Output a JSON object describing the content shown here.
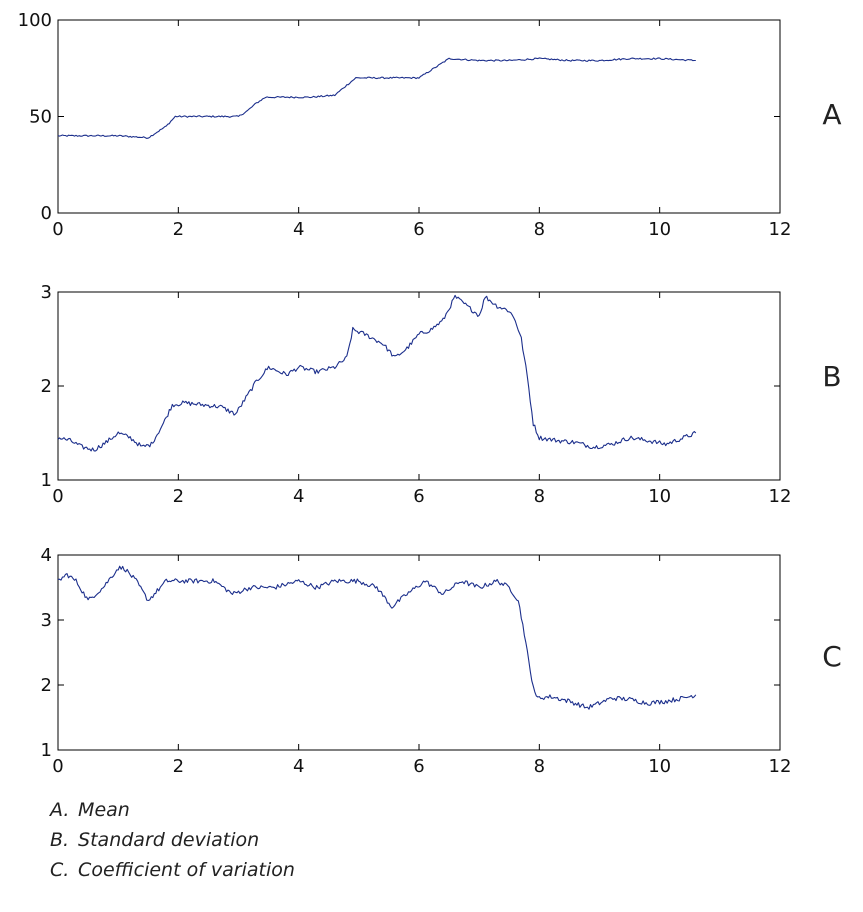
{
  "chart_data": [
    {
      "type": "line",
      "panel_letter": "A",
      "xlim": [
        0,
        12
      ],
      "ylim": [
        0,
        100
      ],
      "x_ticks": [
        0,
        2,
        4,
        6,
        8,
        10,
        12
      ],
      "y_ticks": [
        0,
        50,
        100
      ],
      "line_color": "#1c2f8c",
      "x": [
        0,
        0.5,
        1.0,
        1.5,
        1.6,
        1.8,
        1.95,
        2.2,
        2.6,
        3.0,
        3.15,
        3.3,
        3.45,
        3.8,
        4.2,
        4.6,
        4.75,
        4.95,
        5.2,
        5.6,
        6.0,
        6.2,
        6.5,
        7.0,
        7.5,
        8.0,
        8.5,
        9.0,
        9.5,
        10.0,
        10.6
      ],
      "y": [
        40,
        40,
        40,
        39,
        41,
        45,
        50,
        50,
        50,
        50,
        53,
        57,
        60,
        60,
        60,
        61,
        65,
        70,
        70,
        70,
        70,
        74,
        80,
        79,
        79,
        80,
        79,
        79,
        80,
        80,
        79
      ]
    },
    {
      "type": "line",
      "panel_letter": "B",
      "xlim": [
        0,
        12
      ],
      "ylim": [
        1,
        3
      ],
      "x_ticks": [
        0,
        2,
        4,
        6,
        8,
        10,
        12
      ],
      "y_ticks": [
        1,
        2,
        3
      ],
      "line_color": "#1c2f8c",
      "x": [
        0,
        0.2,
        0.4,
        0.6,
        0.8,
        1.0,
        1.2,
        1.4,
        1.55,
        1.75,
        1.9,
        2.1,
        2.4,
        2.7,
        2.95,
        3.1,
        3.3,
        3.5,
        3.8,
        4.0,
        4.3,
        4.6,
        4.8,
        4.9,
        5.1,
        5.4,
        5.6,
        5.8,
        6.0,
        6.2,
        6.4,
        6.6,
        6.8,
        7.0,
        7.1,
        7.3,
        7.5,
        7.6,
        7.7,
        7.8,
        7.9,
        8.0,
        8.3,
        8.6,
        8.9,
        9.2,
        9.5,
        9.8,
        10.1,
        10.4,
        10.6
      ],
      "y": [
        1.45,
        1.42,
        1.35,
        1.32,
        1.4,
        1.5,
        1.45,
        1.35,
        1.38,
        1.6,
        1.8,
        1.82,
        1.8,
        1.78,
        1.7,
        1.85,
        2.05,
        2.2,
        2.12,
        2.2,
        2.15,
        2.2,
        2.3,
        2.6,
        2.55,
        2.45,
        2.3,
        2.4,
        2.55,
        2.6,
        2.7,
        2.95,
        2.85,
        2.75,
        2.95,
        2.85,
        2.8,
        2.7,
        2.5,
        2.1,
        1.6,
        1.45,
        1.42,
        1.4,
        1.35,
        1.38,
        1.45,
        1.42,
        1.38,
        1.45,
        1.5
      ]
    },
    {
      "type": "line",
      "panel_letter": "C",
      "xlim": [
        0,
        12
      ],
      "ylim": [
        1,
        4
      ],
      "x_ticks": [
        0,
        2,
        4,
        6,
        8,
        10,
        12
      ],
      "y_ticks": [
        1,
        2,
        3,
        4
      ],
      "line_color": "#1c2f8c",
      "x": [
        0,
        0.15,
        0.3,
        0.5,
        0.75,
        1.0,
        1.1,
        1.3,
        1.5,
        1.8,
        2.2,
        2.6,
        2.9,
        3.2,
        3.6,
        4.0,
        4.3,
        4.6,
        5.0,
        5.3,
        5.55,
        5.8,
        6.1,
        6.4,
        6.7,
        7.0,
        7.3,
        7.5,
        7.65,
        7.75,
        7.85,
        7.95,
        8.2,
        8.5,
        8.8,
        9.0,
        9.2,
        9.5,
        9.8,
        10.1,
        10.4,
        10.6
      ],
      "y": [
        3.6,
        3.7,
        3.6,
        3.3,
        3.5,
        3.8,
        3.8,
        3.6,
        3.3,
        3.6,
        3.6,
        3.6,
        3.4,
        3.5,
        3.5,
        3.6,
        3.5,
        3.6,
        3.6,
        3.5,
        3.2,
        3.4,
        3.6,
        3.4,
        3.6,
        3.5,
        3.6,
        3.5,
        3.3,
        2.8,
        2.2,
        1.8,
        1.82,
        1.75,
        1.65,
        1.72,
        1.8,
        1.78,
        1.72,
        1.75,
        1.8,
        1.85
      ]
    }
  ],
  "caption": [
    {
      "letter": "A.",
      "text": "Mean"
    },
    {
      "letter": "B.",
      "text": "Standard deviation"
    },
    {
      "letter": "C.",
      "text": "Coefficient of variation"
    }
  ]
}
